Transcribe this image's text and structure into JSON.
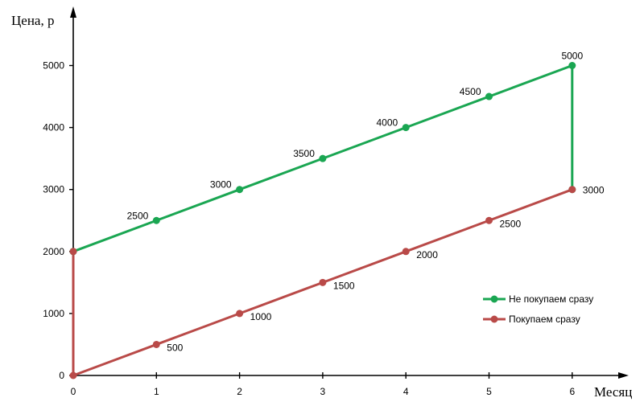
{
  "chart_data": {
    "type": "line",
    "xlabel": "Месяц",
    "ylabel": "Цена, р",
    "xlim": [
      0,
      6
    ],
    "ylim": [
      0,
      5000
    ],
    "x_ticks": [
      "0",
      "1",
      "2",
      "3",
      "4",
      "5",
      "6"
    ],
    "y_ticks": [
      "0",
      "1000",
      "2000",
      "3000",
      "4000",
      "5000"
    ],
    "grid": false,
    "legend_position": "right",
    "series": [
      {
        "name": "Не покупаем сразу",
        "color": "#1aa652",
        "points": [
          [
            0,
            2000
          ],
          [
            1,
            2500
          ],
          [
            2,
            3000
          ],
          [
            3,
            3500
          ],
          [
            4,
            4000
          ],
          [
            5,
            4500
          ],
          [
            6,
            5000
          ],
          [
            6,
            3000
          ]
        ],
        "labels": [
          {
            "x": 1,
            "y": 2500,
            "text": "2500"
          },
          {
            "x": 2,
            "y": 3000,
            "text": "3000"
          },
          {
            "x": 3,
            "y": 3500,
            "text": "3500"
          },
          {
            "x": 4,
            "y": 4000,
            "text": "4000"
          },
          {
            "x": 5,
            "y": 4500,
            "text": "4500"
          },
          {
            "x": 6,
            "y": 5000,
            "text": "5000"
          }
        ]
      },
      {
        "name": "Покупаем сразу",
        "color": "#b94a48",
        "points": [
          [
            0,
            2000
          ],
          [
            0,
            0
          ],
          [
            1,
            500
          ],
          [
            2,
            1000
          ],
          [
            3,
            1500
          ],
          [
            4,
            2000
          ],
          [
            5,
            2500
          ],
          [
            6,
            3000
          ]
        ],
        "labels": [
          {
            "x": 1,
            "y": 500,
            "text": "500"
          },
          {
            "x": 2,
            "y": 1000,
            "text": "1000"
          },
          {
            "x": 3,
            "y": 1500,
            "text": "1500"
          },
          {
            "x": 4,
            "y": 2000,
            "text": "2000"
          },
          {
            "x": 5,
            "y": 2500,
            "text": "2500"
          },
          {
            "x": 6,
            "y": 3000,
            "text": "3000"
          }
        ]
      }
    ]
  }
}
